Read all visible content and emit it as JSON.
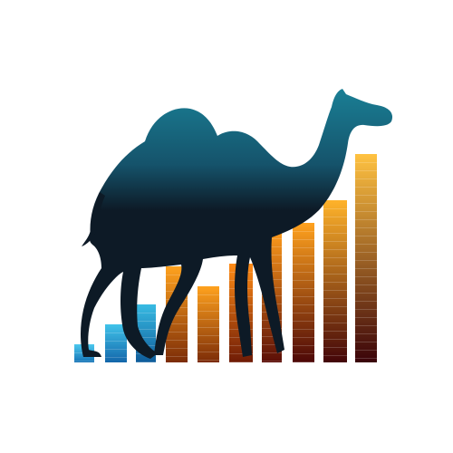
{
  "logo": {
    "subject": "camel-silhouette",
    "subject_fill_top": "#1a7f95",
    "subject_fill_bottom": "#0d1a26",
    "background": "#ffffff",
    "bars": [
      {
        "level": 0.07,
        "color_top": "#4cc9ee",
        "color_bottom": "#1473b6"
      },
      {
        "level": 0.15,
        "color_top": "#41c3ea",
        "color_bottom": "#1366aa"
      },
      {
        "level": 0.23,
        "color_top": "#38bbe3",
        "color_bottom": "#0f5c9a"
      },
      {
        "level": 0.38,
        "color_top": "#ffa21e",
        "color_bottom": "#7c2c07"
      },
      {
        "level": 0.3,
        "color_top": "#ffa21e",
        "color_bottom": "#7c2c07"
      },
      {
        "level": 0.39,
        "color_top": "#ff8c16",
        "color_bottom": "#6f1b06"
      },
      {
        "level": 0.52,
        "color_top": "#ff9c1c",
        "color_bottom": "#5b0e07"
      },
      {
        "level": 0.55,
        "color_top": "#ffa21e",
        "color_bottom": "#4d0807"
      },
      {
        "level": 0.64,
        "color_top": "#ffb32a",
        "color_bottom": "#430508"
      },
      {
        "level": 0.82,
        "color_top": "#ffc241",
        "color_bottom": "#3a0309"
      }
    ]
  }
}
